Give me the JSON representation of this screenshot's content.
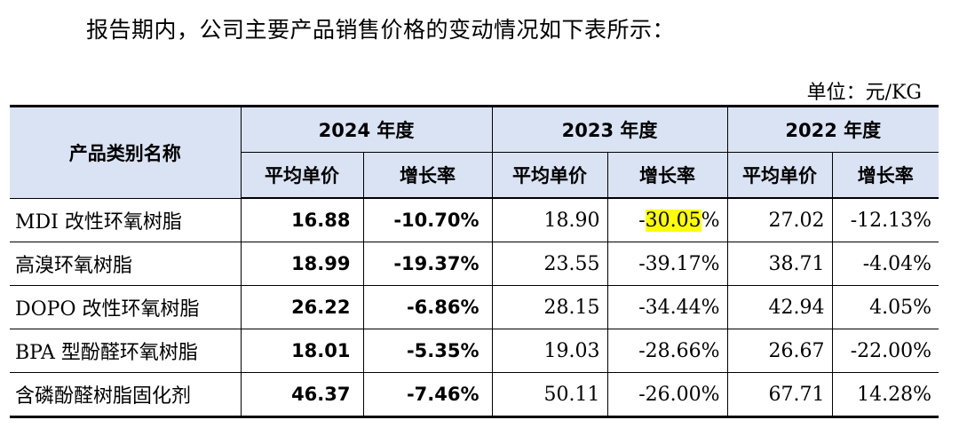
{
  "intro": "报告期内，公司主要产品销售价格的变动情况如下表所示：",
  "unit": "单位：元/KG",
  "header": {
    "category": "产品类别名称",
    "years": [
      "2024 年度",
      "2023 年度",
      "2022 年度"
    ],
    "avg_price": "平均单价",
    "growth": "增长率"
  },
  "rows": [
    {
      "name": "MDI 改性环氧树脂",
      "y2024_price": "16.88",
      "y2024_growth": "-10.70%",
      "y2023_price": "18.90",
      "y2023_growth_prefix": "-",
      "y2023_growth_hl": "30.05",
      "y2023_growth_suffix": "%",
      "y2022_price": "27.02",
      "y2022_growth": "-12.13%"
    },
    {
      "name": "高溴环氧树脂",
      "y2024_price": "18.99",
      "y2024_growth": "-19.37%",
      "y2023_price": "23.55",
      "y2023_growth": "-39.17%",
      "y2022_price": "38.71",
      "y2022_growth": "-4.04%"
    },
    {
      "name": "DOPO 改性环氧树脂",
      "y2024_price": "26.22",
      "y2024_growth": "-6.86%",
      "y2023_price": "28.15",
      "y2023_growth": "-34.44%",
      "y2022_price": "42.94",
      "y2022_growth": "4.05%"
    },
    {
      "name": "BPA 型酚醛环氧树脂",
      "y2024_price": "18.01",
      "y2024_growth": "-5.35%",
      "y2023_price": "19.03",
      "y2023_growth": "-28.66%",
      "y2022_price": "26.67",
      "y2022_growth": "-22.00%"
    },
    {
      "name": "含磷酚醛树脂固化剂",
      "y2024_price": "46.37",
      "y2024_growth": "-7.46%",
      "y2023_price": "50.11",
      "y2023_growth": "-26.00%",
      "y2022_price": "67.71",
      "y2022_growth": "14.28%"
    }
  ],
  "highlight_color": "#ffff00",
  "header_bg": "#dae3f3"
}
